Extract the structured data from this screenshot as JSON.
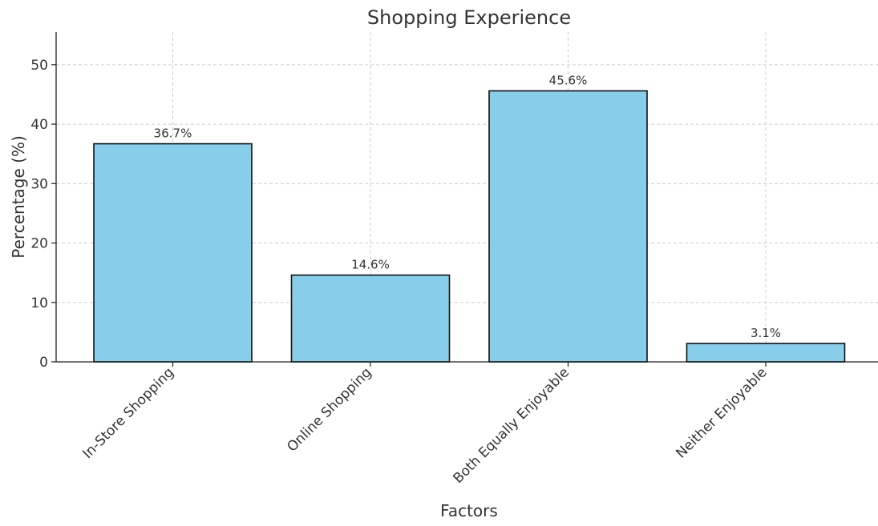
{
  "chart_data": {
    "type": "bar",
    "title": "Shopping Experience",
    "xlabel": "Factors",
    "ylabel": "Percentage (%)",
    "categories": [
      "In-Store Shopping",
      "Online Shopping",
      "Both Equally Enjoyable",
      "Neither Enjoyable"
    ],
    "values": [
      36.7,
      14.6,
      45.6,
      3.1
    ],
    "data_labels": [
      "36.7%",
      "14.6%",
      "45.6%",
      "3.1%"
    ],
    "ylim": [
      0,
      55.5
    ],
    "yticks": [
      0,
      10,
      20,
      30,
      40,
      50
    ],
    "ytick_labels": [
      "0",
      "10",
      "20",
      "30",
      "40",
      "50"
    ],
    "grid": true,
    "bar_color": "#87CEEB",
    "bar_edge_color": "#111111"
  }
}
